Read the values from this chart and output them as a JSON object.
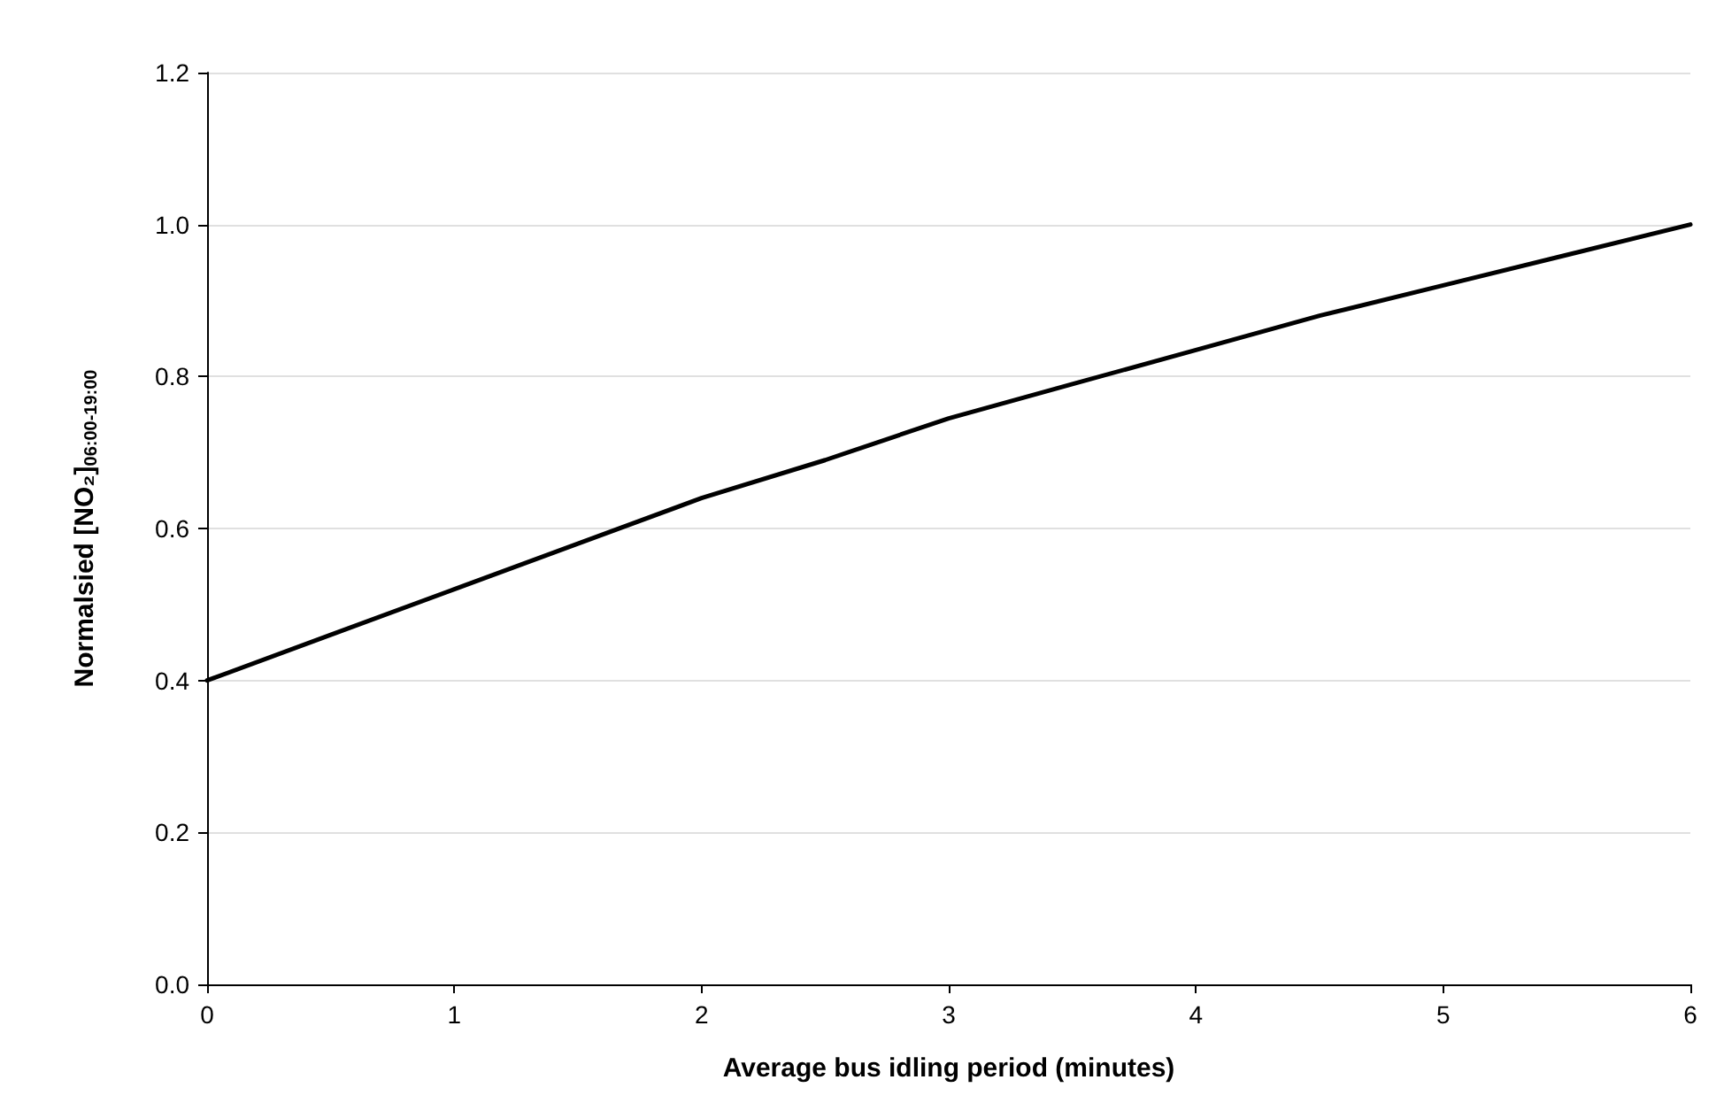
{
  "chart_data": {
    "type": "line",
    "xlabel": "Average bus idling period (minutes)",
    "ylabel": "Normalsied [NO₂]$_{06:00-19:00}$",
    "x": [
      0,
      0.5,
      1,
      1.5,
      2,
      2.5,
      3,
      3.5,
      4,
      4.5,
      5,
      5.5,
      6
    ],
    "series": [
      {
        "color": "#000000",
        "values": [
          0.4,
          0.46,
          0.52,
          0.58,
          0.64,
          0.69,
          0.745,
          0.79,
          0.835,
          0.88,
          0.92,
          0.96,
          1.0
        ]
      }
    ],
    "xlim": [
      0,
      6
    ],
    "xticks": [
      0,
      1,
      2,
      3,
      4,
      5,
      6
    ],
    "ylim": [
      0,
      1.2
    ],
    "yticks": [
      {
        "value": 0,
        "label": "0.0"
      },
      {
        "value": 0.2,
        "label": "0.2"
      },
      {
        "value": 0.4,
        "label": "0.4"
      },
      {
        "value": 0.6,
        "label": "0.6"
      },
      {
        "value": 0.8,
        "label": "0.8"
      },
      {
        "value": 1,
        "label": "1.0"
      },
      {
        "value": 1.2,
        "label": "1.2"
      }
    ],
    "grid": "y",
    "marker": "none",
    "line_style": "solid"
  }
}
